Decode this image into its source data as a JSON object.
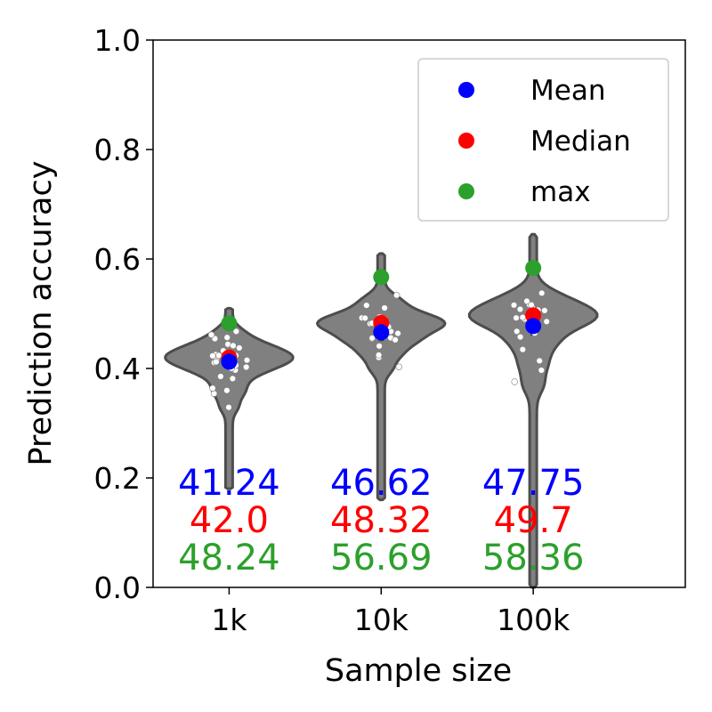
{
  "chart_data": {
    "type": "violin",
    "xlabel": "Sample size",
    "ylabel": "Prediction accuracy",
    "ylim": [
      0.0,
      1.0
    ],
    "yticks": [
      "0.0",
      "0.2",
      "0.4",
      "0.6",
      "0.8",
      "1.0"
    ],
    "categories": [
      "1k",
      "10k",
      "100k"
    ],
    "legend": {
      "position": "top-right",
      "entries": [
        {
          "label": "Mean",
          "color": "#0000ff"
        },
        {
          "label": "Median",
          "color": "#ff0000"
        },
        {
          "label": "max",
          "color": "#2ca02c"
        }
      ]
    },
    "colors": {
      "mean": "#0000ff",
      "median": "#ff0000",
      "max": "#2ca02c",
      "violin_fill": "#808080",
      "violin_edge": "#4d4d4d"
    },
    "groups": [
      {
        "name": "1k",
        "mean": 0.4124,
        "median": 0.42,
        "max": 0.4824,
        "min_tail": 0.18,
        "top_tail": 0.51,
        "mean_label": "41.24",
        "median_label": "42.0",
        "max_label": "48.24",
        "points": [
          0.33,
          0.35,
          0.36,
          0.37,
          0.38,
          0.39,
          0.39,
          0.4,
          0.4,
          0.4,
          0.41,
          0.41,
          0.41,
          0.41,
          0.42,
          0.42,
          0.42,
          0.42,
          0.42,
          0.43,
          0.43,
          0.43,
          0.43,
          0.44,
          0.44,
          0.44,
          0.45,
          0.45,
          0.46,
          0.47
        ]
      },
      {
        "name": "10k",
        "mean": 0.4662,
        "median": 0.4832,
        "max": 0.5669,
        "min_tail": 0.16,
        "top_tail": 0.61,
        "mean_label": "46.62",
        "median_label": "48.32",
        "max_label": "56.69",
        "points": [
          0.4,
          0.42,
          0.43,
          0.44,
          0.45,
          0.45,
          0.46,
          0.46,
          0.47,
          0.47,
          0.48,
          0.48,
          0.48,
          0.48,
          0.49,
          0.49,
          0.49,
          0.5,
          0.5,
          0.51,
          0.52,
          0.53
        ]
      },
      {
        "name": "100k",
        "mean": 0.4775,
        "median": 0.497,
        "max": 0.5836,
        "min_tail": 0.0,
        "top_tail": 0.645,
        "mean_label": "47.75",
        "median_label": "49.7",
        "max_label": "58.36",
        "points": [
          0.37,
          0.4,
          0.42,
          0.44,
          0.45,
          0.46,
          0.47,
          0.48,
          0.48,
          0.49,
          0.49,
          0.49,
          0.5,
          0.5,
          0.5,
          0.51,
          0.51,
          0.52,
          0.52,
          0.53,
          0.54
        ]
      }
    ]
  }
}
